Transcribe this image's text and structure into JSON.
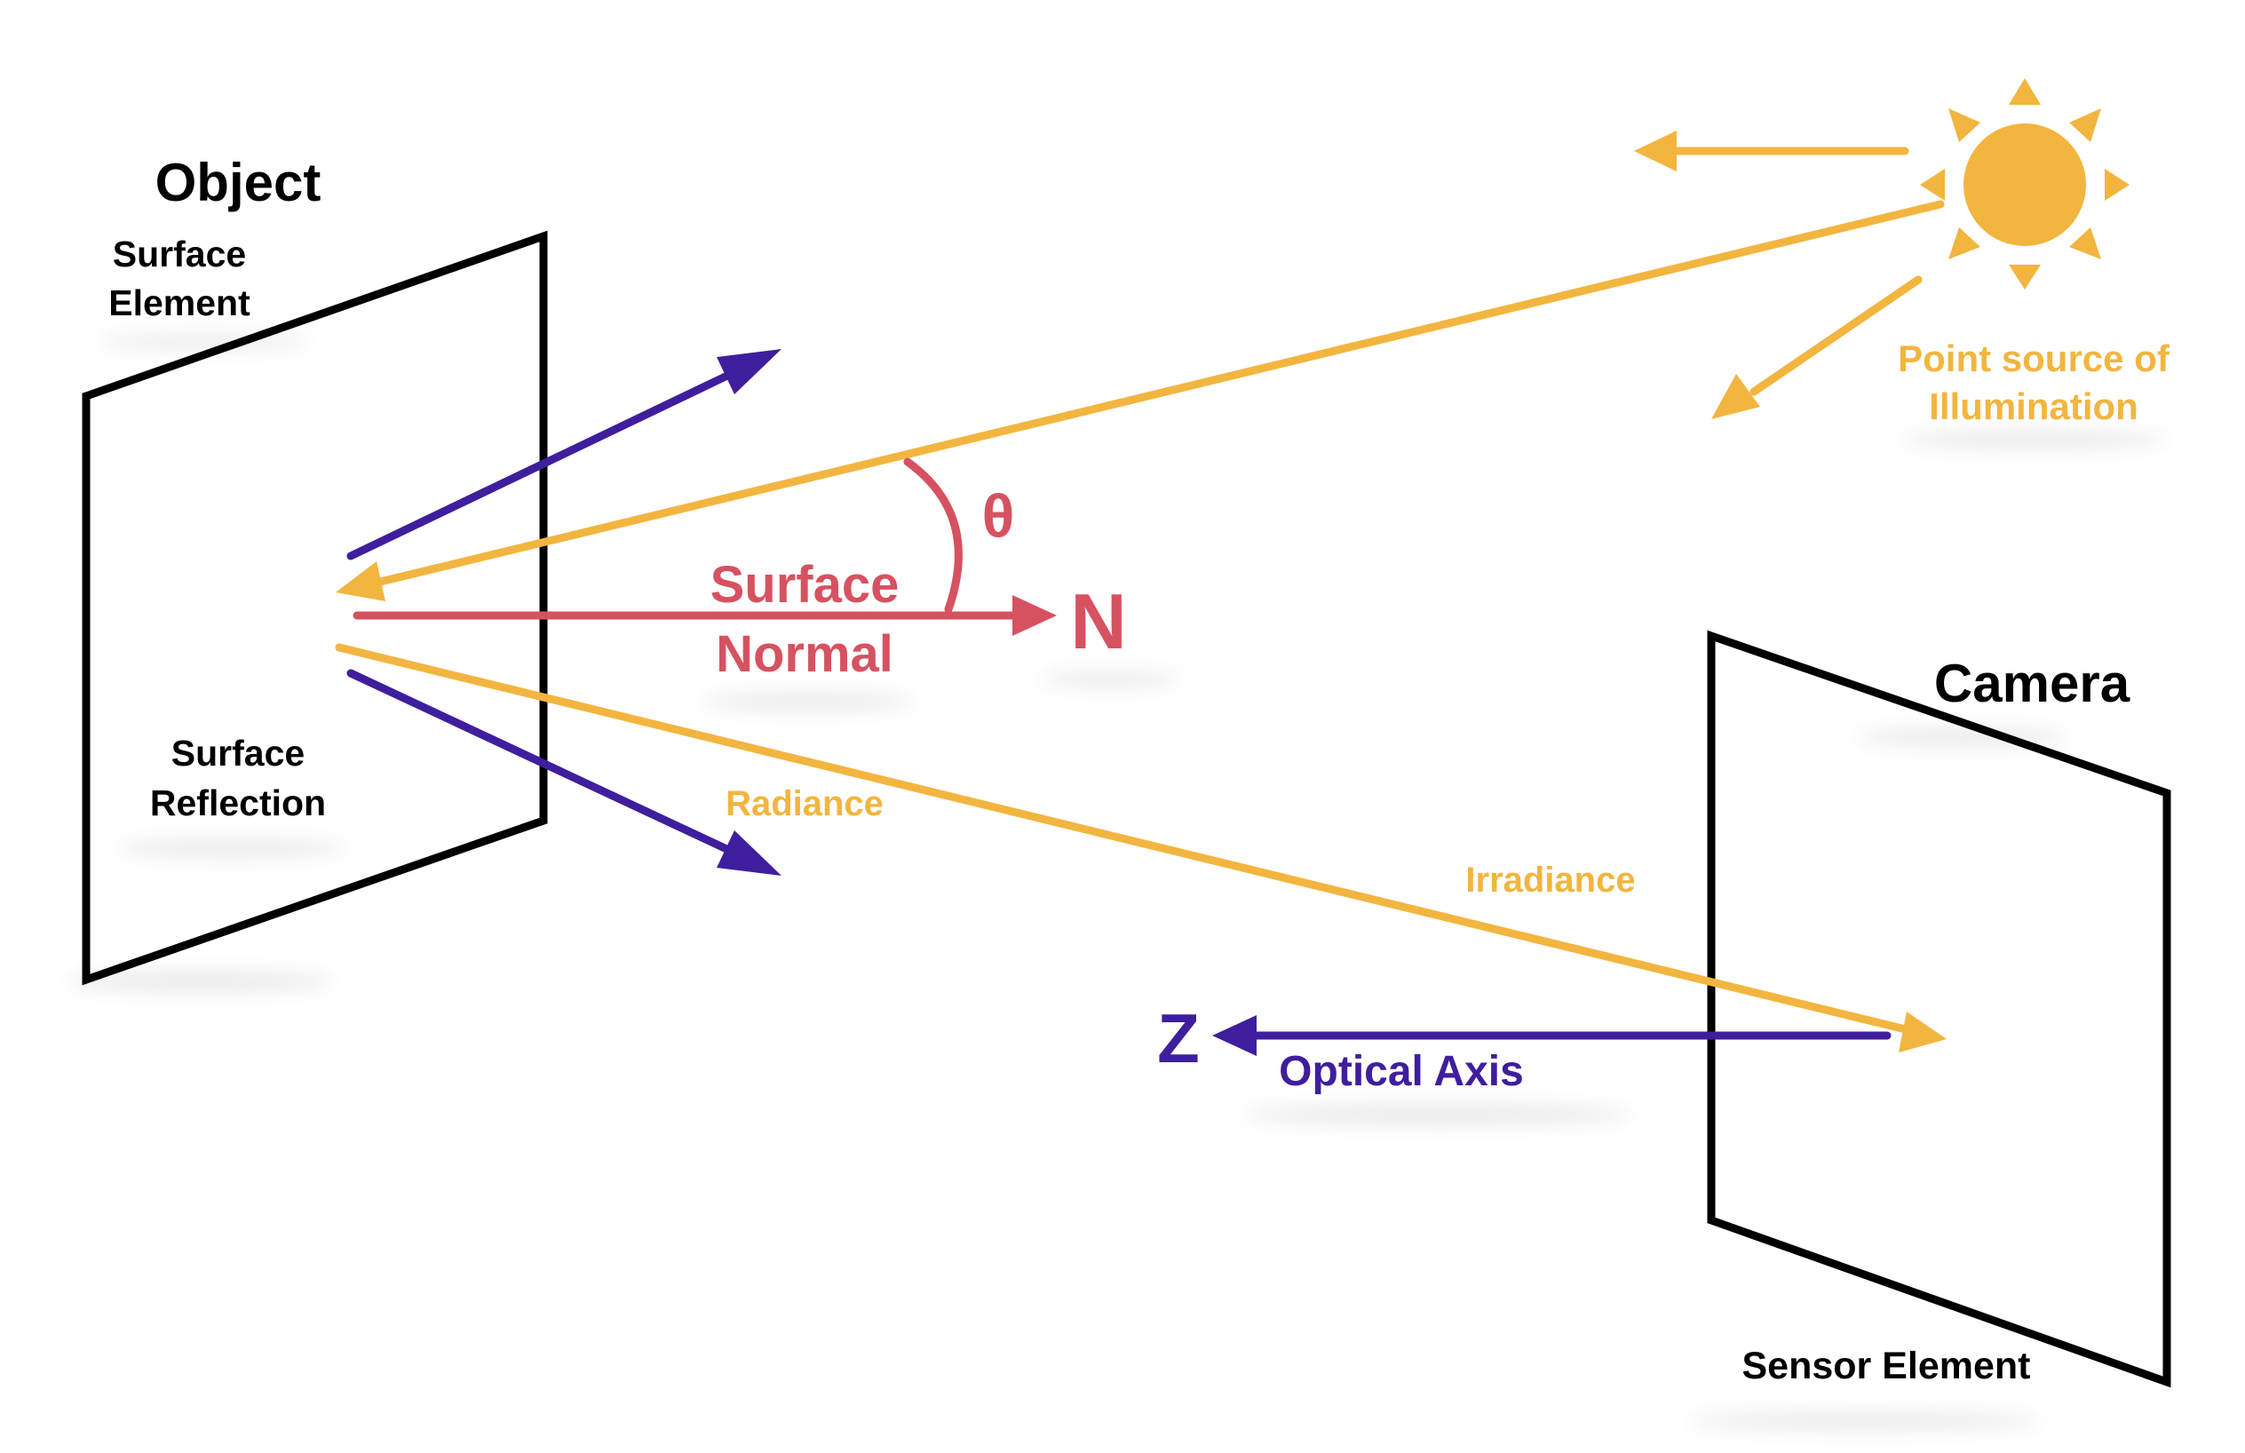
{
  "colors": {
    "orange": "#F2B53F",
    "purple": "#3F1E9E",
    "red": "#D65261",
    "black": "#000000"
  },
  "icons": {
    "sun": "sun-icon"
  },
  "labels": {
    "object": "Object",
    "surface_element_line1": "Surface",
    "surface_element_line2": "Element",
    "surface_reflection_line1": "Surface",
    "surface_reflection_line2": "Reflection",
    "surface_normal_line1": "Surface",
    "surface_normal_line2": "Normal",
    "normal_symbol": "N",
    "theta": "θ",
    "radiance": "Radiance",
    "irradiance": "Irradiance",
    "point_source_line1": "Point source of",
    "point_source_line2": "Illumination",
    "camera": "Camera",
    "z_symbol": "Z",
    "optical_axis": "Optical Axis",
    "sensor_element": "Sensor Element"
  }
}
